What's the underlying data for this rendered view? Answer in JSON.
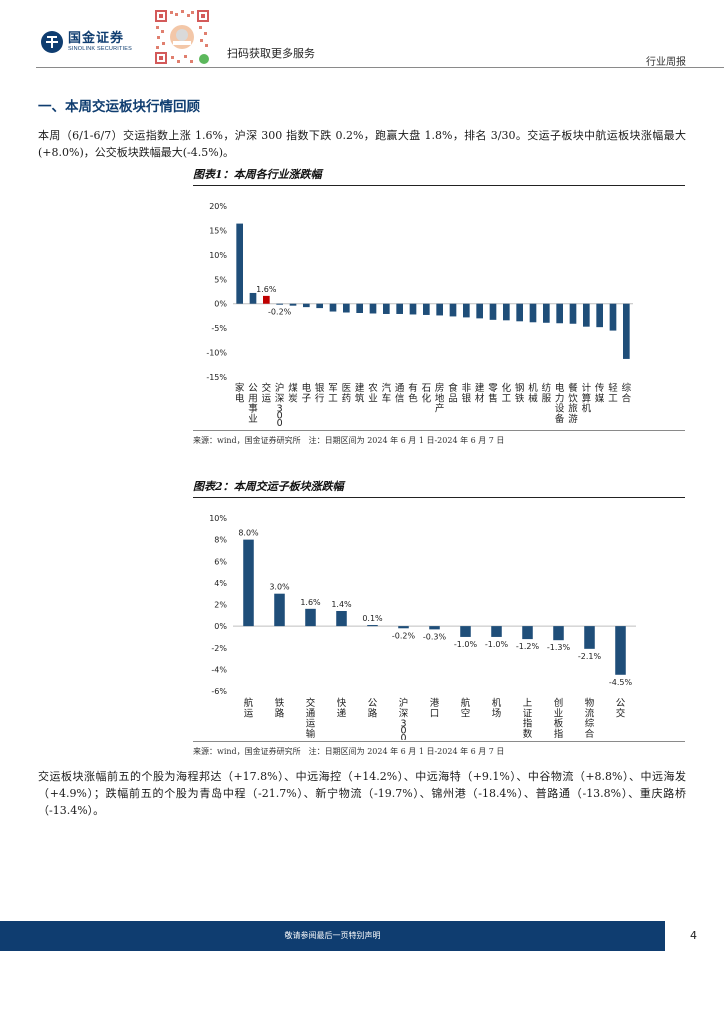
{
  "header": {
    "logo_cn": "国金证券",
    "logo_en": "SINOLINK SECURITIES",
    "qr_caption": "扫码获取更多服务",
    "report_type": "行业周报"
  },
  "section": {
    "title": "一、本周交运板块行情回顾"
  },
  "paragraphs": {
    "p1": "本周（6/1-6/7）交运指数上涨 1.6%，沪深 300 指数下跌 0.2%，跑赢大盘 1.8%，排名 3/30。交运子板块中航运板块涨幅最大(+8.0%)，公交板块跌幅最大(-4.5%)。",
    "p2": "交运板块涨幅前五的个股为海程邦达（+17.8%）、中远海控（+14.2%）、中远海特（+9.1%）、中谷物流（+8.8%）、中远海发（+4.9%）；跌幅前五的个股为青岛中程（-21.7%）、新宁物流（-19.7%）、锦州港（-18.4%）、普路通（-13.8%）、重庆路桥（-13.4%）。"
  },
  "figures": {
    "fig1_title": "图表1：本周各行业涨跌幅",
    "fig2_title": "图表2：本周交运子板块涨跌幅",
    "source1": "来源：wind，国金证券研究所　注：日期区间为 2024 年 6 月 1 日-2024 年 6 月 7 日",
    "source2": "来源：wind，国金证券研究所　注：日期区间为 2024 年 6 月 1 日-2024 年 6 月 7 日"
  },
  "chart_data": [
    {
      "type": "bar",
      "title": "本周各行业涨跌幅",
      "categories": [
        "家电",
        "公用事业",
        "交运",
        "沪深300",
        "煤炭",
        "电子",
        "银行",
        "军工",
        "医药",
        "建筑",
        "农业",
        "汽车",
        "通信",
        "有色",
        "石化",
        "房地产",
        "食品",
        "非银",
        "建材",
        "零售",
        "化工",
        "钢铁",
        "机械",
        "纺服",
        "电力设备",
        "餐饮旅游",
        "计算机",
        "传媒",
        "轻工",
        "综合"
      ],
      "values": [
        16.4,
        2.2,
        1.6,
        -0.2,
        -0.4,
        -0.7,
        -0.9,
        -1.6,
        -1.8,
        -1.9,
        -2.0,
        -2.1,
        -2.1,
        -2.2,
        -2.3,
        -2.4,
        -2.6,
        -2.8,
        -3.0,
        -3.3,
        -3.4,
        -3.6,
        -3.8,
        -3.9,
        -4.0,
        -4.1,
        -4.7,
        -4.8,
        -5.5,
        -11.3
      ],
      "data_labels": {
        "交运": "1.6%",
        "沪深300": "-0.2%"
      },
      "highlight": "交运",
      "highlight_color": "#c00000",
      "bar_color": "#1f4e79",
      "ylim": [
        -15,
        20
      ],
      "yticks": [
        "20%",
        "15%",
        "10%",
        "5%",
        "0%",
        "-5%",
        "-10%",
        "-15%"
      ],
      "ytick_values": [
        20,
        15,
        10,
        5,
        0,
        -5,
        -10,
        -15
      ]
    },
    {
      "type": "bar",
      "title": "本周交运子板块涨跌幅",
      "categories": [
        "航运",
        "铁路",
        "交通运输",
        "快递",
        "公路",
        "沪深300",
        "港口",
        "航空",
        "机场",
        "上证指数",
        "创业板指",
        "物流综合",
        "公交"
      ],
      "values": [
        8.0,
        3.0,
        1.6,
        1.4,
        0.1,
        -0.2,
        -0.3,
        -1.0,
        -1.0,
        -1.2,
        -1.3,
        -2.1,
        -4.5
      ],
      "data_labels": [
        "8.0%",
        "3.0%",
        "1.6%",
        "1.4%",
        "0.1%",
        "-0.2%",
        "-0.3%",
        "-1.0%",
        "-1.0%",
        "-1.2%",
        "-1.3%",
        "-2.1%",
        "-4.5%"
      ],
      "bar_color": "#1f4e79",
      "ylim": [
        -6,
        10
      ],
      "yticks": [
        "10%",
        "8%",
        "6%",
        "4%",
        "2%",
        "0%",
        "-2%",
        "-4%",
        "-6%"
      ],
      "ytick_values": [
        10,
        8,
        6,
        4,
        2,
        0,
        -2,
        -4,
        -6
      ]
    }
  ],
  "footer": {
    "disclaimer": "敬请参阅最后一页特别声明",
    "page": "4"
  },
  "colors": {
    "brand": "#0f3d70",
    "bar": "#1f4e79",
    "highlight": "#c00000"
  }
}
